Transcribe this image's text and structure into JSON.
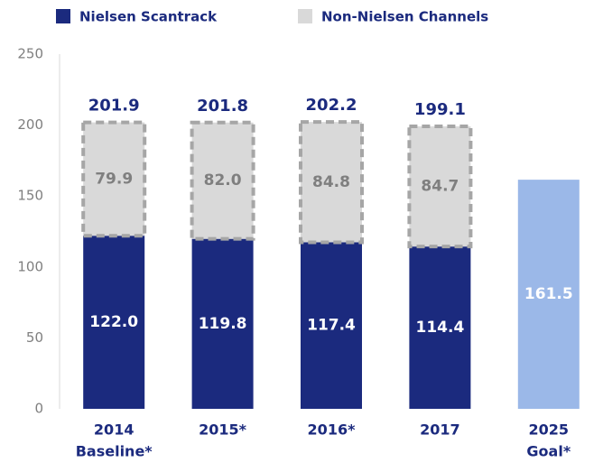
{
  "chart_data": {
    "type": "stacked_bar",
    "categories": [
      [
        "2014",
        "Baseline*"
      ],
      [
        "2015*"
      ],
      [
        "2016*"
      ],
      [
        "2017"
      ],
      [
        "2025",
        "Goal*"
      ]
    ],
    "series": [
      {
        "name": "Nielsen Scantrack",
        "color": "#1b2a7e",
        "label_color": "#ffffff",
        "values": [
          122.0,
          119.8,
          117.4,
          114.4,
          null
        ],
        "value_labels": [
          "122.0",
          "119.8",
          "117.4",
          "114.4",
          null
        ]
      },
      {
        "name": "Non-Nielsen Channels",
        "color": "#d9d9d9",
        "label_color": "#7f7f7f",
        "dashed": true,
        "values": [
          79.9,
          82.0,
          84.8,
          84.7,
          null
        ],
        "value_labels": [
          "79.9",
          "82.0",
          "84.8",
          "84.7",
          null
        ]
      },
      {
        "color": "#9bb8e8",
        "label_color": "#ffffff",
        "values": [
          null,
          null,
          null,
          null,
          161.5
        ],
        "value_labels": [
          null,
          null,
          null,
          null,
          "161.5"
        ]
      }
    ],
    "totals": [
      201.9,
      201.8,
      202.2,
      199.1,
      null
    ],
    "ylim": [
      0,
      250
    ],
    "yticks": [
      0,
      50,
      100,
      150,
      200,
      250
    ],
    "grid": false
  }
}
